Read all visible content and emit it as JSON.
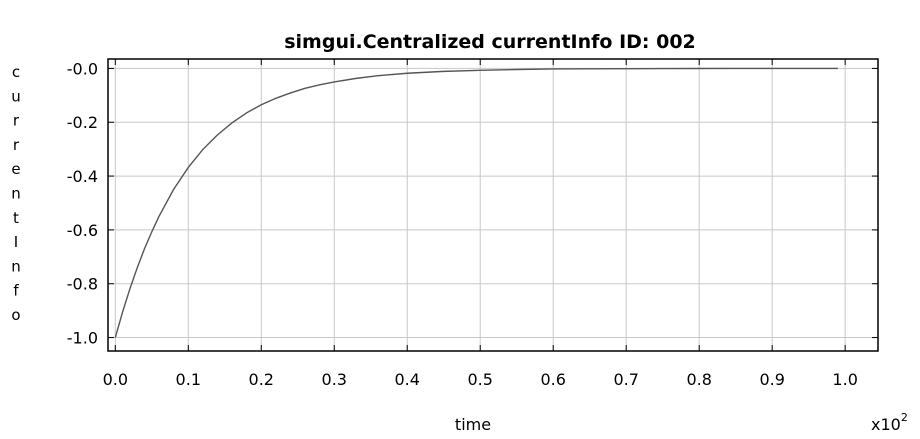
{
  "chart_data": {
    "type": "line",
    "title": "simgui.Centralized currentInfo ID: 002",
    "xlabel": "time",
    "ylabel": "currentInfo",
    "x_multiplier": "x10",
    "x_multiplier_exp": "2",
    "xlim": [
      -0.01,
      1.045
    ],
    "ylim": [
      -1.05,
      0.035
    ],
    "x_ticks": [
      "0.0",
      "0.1",
      "0.2",
      "0.3",
      "0.4",
      "0.5",
      "0.6",
      "0.7",
      "0.8",
      "0.9",
      "1.0"
    ],
    "y_ticks": [
      "-0.0",
      "-0.2",
      "-0.4",
      "-0.6",
      "-0.8",
      "-1.0"
    ],
    "grid": true,
    "series": [
      {
        "name": "",
        "color": "#555555",
        "x": [
          0.0,
          0.01,
          0.02,
          0.03,
          0.04,
          0.05,
          0.06,
          0.08,
          0.1,
          0.12,
          0.14,
          0.16,
          0.18,
          0.2,
          0.22,
          0.24,
          0.26,
          0.28,
          0.3,
          0.33,
          0.36,
          0.4,
          0.45,
          0.5,
          0.55,
          0.6,
          0.65,
          0.7,
          0.75,
          0.8,
          0.85,
          0.9,
          0.95,
          0.99
        ],
        "y": [
          -1.0,
          -0.905,
          -0.819,
          -0.741,
          -0.67,
          -0.607,
          -0.549,
          -0.449,
          -0.368,
          -0.301,
          -0.247,
          -0.202,
          -0.165,
          -0.135,
          -0.111,
          -0.091,
          -0.074,
          -0.061,
          -0.05,
          -0.037,
          -0.027,
          -0.018,
          -0.011,
          -0.007,
          -0.004,
          -0.002,
          -0.0015,
          -0.001,
          -0.0006,
          -0.0003,
          -0.0002,
          -0.0001,
          -0.0001,
          0.0
        ]
      }
    ]
  }
}
